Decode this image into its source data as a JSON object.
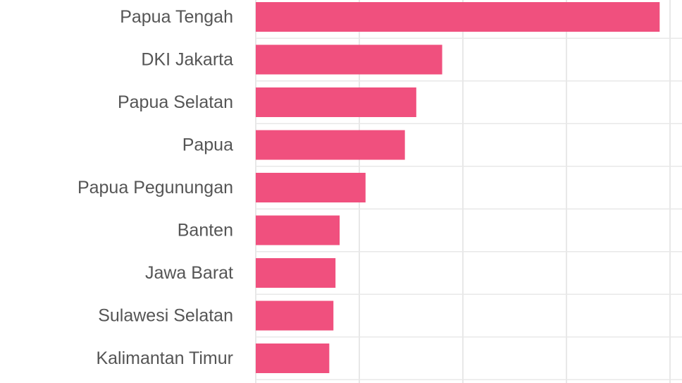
{
  "chart_data": {
    "type": "bar",
    "orientation": "horizontal",
    "categories": [
      "Papua Tengah",
      "DKI Jakarta",
      "Papua Selatan",
      "Papua",
      "Papua Pegunungan",
      "Banten",
      "Jawa Barat",
      "Sulawesi Selatan",
      "Kalimantan Timur"
    ],
    "values": [
      3.9,
      1.8,
      1.55,
      1.44,
      1.06,
      0.81,
      0.77,
      0.75,
      0.71
    ],
    "xlim": [
      0,
      4.0
    ],
    "grid": true,
    "bar_color": "#f0507e",
    "title": "",
    "xlabel": "",
    "ylabel": ""
  }
}
